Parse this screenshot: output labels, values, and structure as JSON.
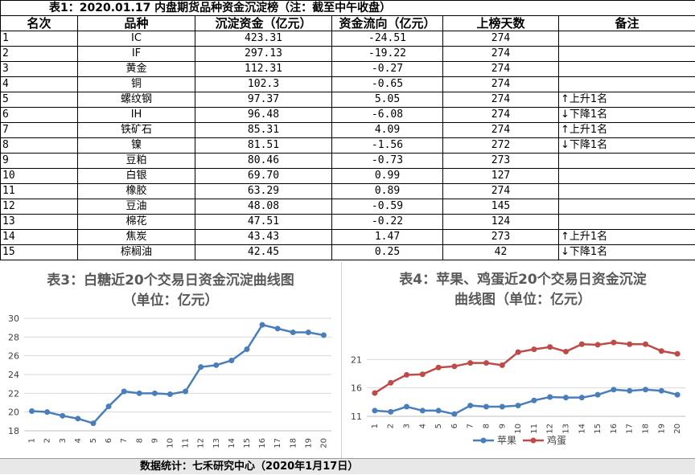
{
  "table": {
    "title": "表1：2020.01.17 内盘期货品种资金沉淀榜（注：截至中午收盘）",
    "headers": [
      "名次",
      "品种",
      "沉淀资金（亿元）",
      "资金流向（亿元）",
      "上榜天数",
      "备注"
    ],
    "rows": [
      {
        "rank": "1",
        "name": "IC",
        "amount": "423.31",
        "flow": "-24.51",
        "days": "274",
        "note": ""
      },
      {
        "rank": "2",
        "name": "IF",
        "amount": "297.13",
        "flow": "-19.22",
        "days": "274",
        "note": ""
      },
      {
        "rank": "3",
        "name": "黄金",
        "amount": "112.31",
        "flow": "-0.27",
        "days": "274",
        "note": ""
      },
      {
        "rank": "4",
        "name": "铜",
        "amount": "102.3",
        "flow": "-0.65",
        "days": "274",
        "note": ""
      },
      {
        "rank": "5",
        "name": "螺纹钢",
        "amount": "97.37",
        "flow": "5.05",
        "days": "274",
        "note": "↑上升1名"
      },
      {
        "rank": "6",
        "name": "IH",
        "amount": "96.48",
        "flow": "-6.08",
        "days": "274",
        "note": "↓下降1名"
      },
      {
        "rank": "7",
        "name": "铁矿石",
        "amount": "85.31",
        "flow": "4.09",
        "days": "274",
        "note": "↑上升1名"
      },
      {
        "rank": "8",
        "name": "镍",
        "amount": "81.51",
        "flow": "-1.56",
        "days": "272",
        "note": "↓下降1名"
      },
      {
        "rank": "9",
        "name": "豆粕",
        "amount": "80.46",
        "flow": "-0.73",
        "days": "273",
        "note": ""
      },
      {
        "rank": "10",
        "name": "白银",
        "amount": "69.70",
        "flow": "0.99",
        "days": "127",
        "note": ""
      },
      {
        "rank": "11",
        "name": "橡胶",
        "amount": "63.29",
        "flow": "0.89",
        "days": "274",
        "note": ""
      },
      {
        "rank": "12",
        "name": "豆油",
        "amount": "48.08",
        "flow": "-0.59",
        "days": "145",
        "note": ""
      },
      {
        "rank": "13",
        "name": "棉花",
        "amount": "47.51",
        "flow": "-0.22",
        "days": "124",
        "note": ""
      },
      {
        "rank": "14",
        "name": "焦炭",
        "amount": "43.43",
        "flow": "1.47",
        "days": "273",
        "note": "↑上升1名"
      },
      {
        "rank": "15",
        "name": "棕榈油",
        "amount": "42.45",
        "flow": "0.25",
        "days": "42",
        "note": "↓下降1名"
      }
    ]
  },
  "chart_data": [
    {
      "type": "line",
      "title": "表3：白糖近20个交易日资金沉淀曲线图",
      "subtitle": "（单位：亿元）",
      "x": [
        1,
        2,
        3,
        4,
        5,
        6,
        7,
        8,
        9,
        10,
        11,
        12,
        13,
        14,
        15,
        16,
        17,
        18,
        19,
        20
      ],
      "series": [
        {
          "name": "",
          "values": [
            20.1,
            20.0,
            19.6,
            19.3,
            18.8,
            20.6,
            22.2,
            22.0,
            22.0,
            21.9,
            22.2,
            24.8,
            25.0,
            25.5,
            26.7,
            29.3,
            28.9,
            28.5,
            28.5,
            28.2
          ],
          "color": "#4a7ebb"
        }
      ],
      "ylim": [
        18,
        30
      ],
      "yticks": [
        18,
        20,
        22,
        24,
        26,
        28,
        30
      ],
      "grid": true,
      "legend": "none"
    },
    {
      "type": "line",
      "title": "表4：苹果、鸡蛋近20个交易日资金沉淀",
      "subtitle": "曲线图（单位：亿元）",
      "x": [
        1,
        2,
        3,
        4,
        5,
        6,
        7,
        8,
        9,
        10,
        11,
        12,
        13,
        14,
        15,
        16,
        17,
        18,
        19,
        20
      ],
      "series": [
        {
          "name": "苹果",
          "values": [
            12.0,
            11.8,
            12.7,
            12.0,
            12.0,
            11.4,
            12.9,
            12.7,
            12.7,
            12.9,
            13.8,
            14.4,
            14.3,
            14.3,
            14.8,
            15.7,
            15.5,
            15.7,
            15.5,
            14.8
          ],
          "color": "#4a7ebb"
        },
        {
          "name": "鸡蛋",
          "values": [
            15.1,
            16.9,
            18.3,
            18.4,
            19.6,
            19.8,
            20.4,
            20.4,
            20.0,
            22.3,
            22.8,
            23.2,
            22.4,
            23.7,
            23.6,
            24.0,
            23.7,
            23.7,
            22.5,
            22.0
          ],
          "color": "#be4b48"
        }
      ],
      "ylim": [
        11,
        26
      ],
      "yticks": [
        11,
        16,
        21
      ],
      "grid": true,
      "legend": "bottom"
    }
  ],
  "footer": {
    "text": "数据统计：七禾研究中心（2020年1月17日）"
  }
}
